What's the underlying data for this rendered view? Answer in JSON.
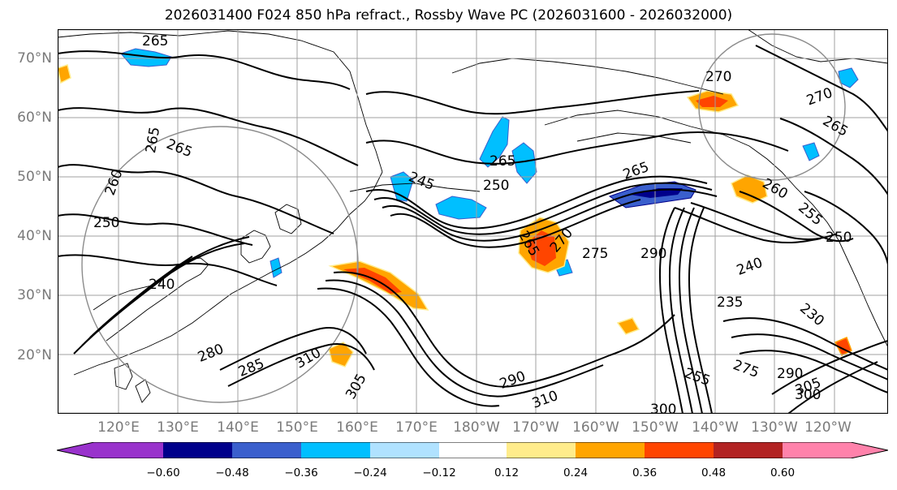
{
  "title": "2026031400 F024 850 hPa refract., Rossby Wave PC (2026031600 - 2026032000)",
  "map": {
    "lat_ticks": [
      "70°N",
      "60°N",
      "50°N",
      "40°N",
      "30°N",
      "20°N"
    ],
    "lon_ticks": [
      "120°E",
      "130°E",
      "140°E",
      "150°E",
      "160°E",
      "170°E",
      "180°W",
      "170°W",
      "160°W",
      "150°W",
      "140°W",
      "130°W",
      "120°W"
    ],
    "contour_labels": [
      "265",
      "265",
      "265",
      "260",
      "250",
      "240",
      "245",
      "250",
      "265",
      "265",
      "270",
      "270",
      "265",
      "260",
      "255",
      "250",
      "240",
      "265",
      "270",
      "275",
      "290",
      "235",
      "230",
      "280",
      "285",
      "310",
      "305",
      "290",
      "310",
      "300",
      "255",
      "275",
      "290",
      "300",
      "305"
    ]
  },
  "colorbar": {
    "tick_labels": [
      "−0.60",
      "−0.48",
      "−0.36",
      "−0.24",
      "−0.12",
      "0.12",
      "0.24",
      "0.36",
      "0.48",
      "0.60"
    ],
    "colors": [
      "#9932cc",
      "#00008b",
      "#3a5fcd",
      "#00bfff",
      "#b0e2ff",
      "#ffffff",
      "#ffec8b",
      "#ffa500",
      "#ff4500",
      "#b22222",
      "#ff82ab"
    ]
  },
  "colors": {
    "contour": "#000000",
    "grid": "#a0a0a0",
    "coast": "#000000",
    "axis_label": "#7a7a7a"
  }
}
